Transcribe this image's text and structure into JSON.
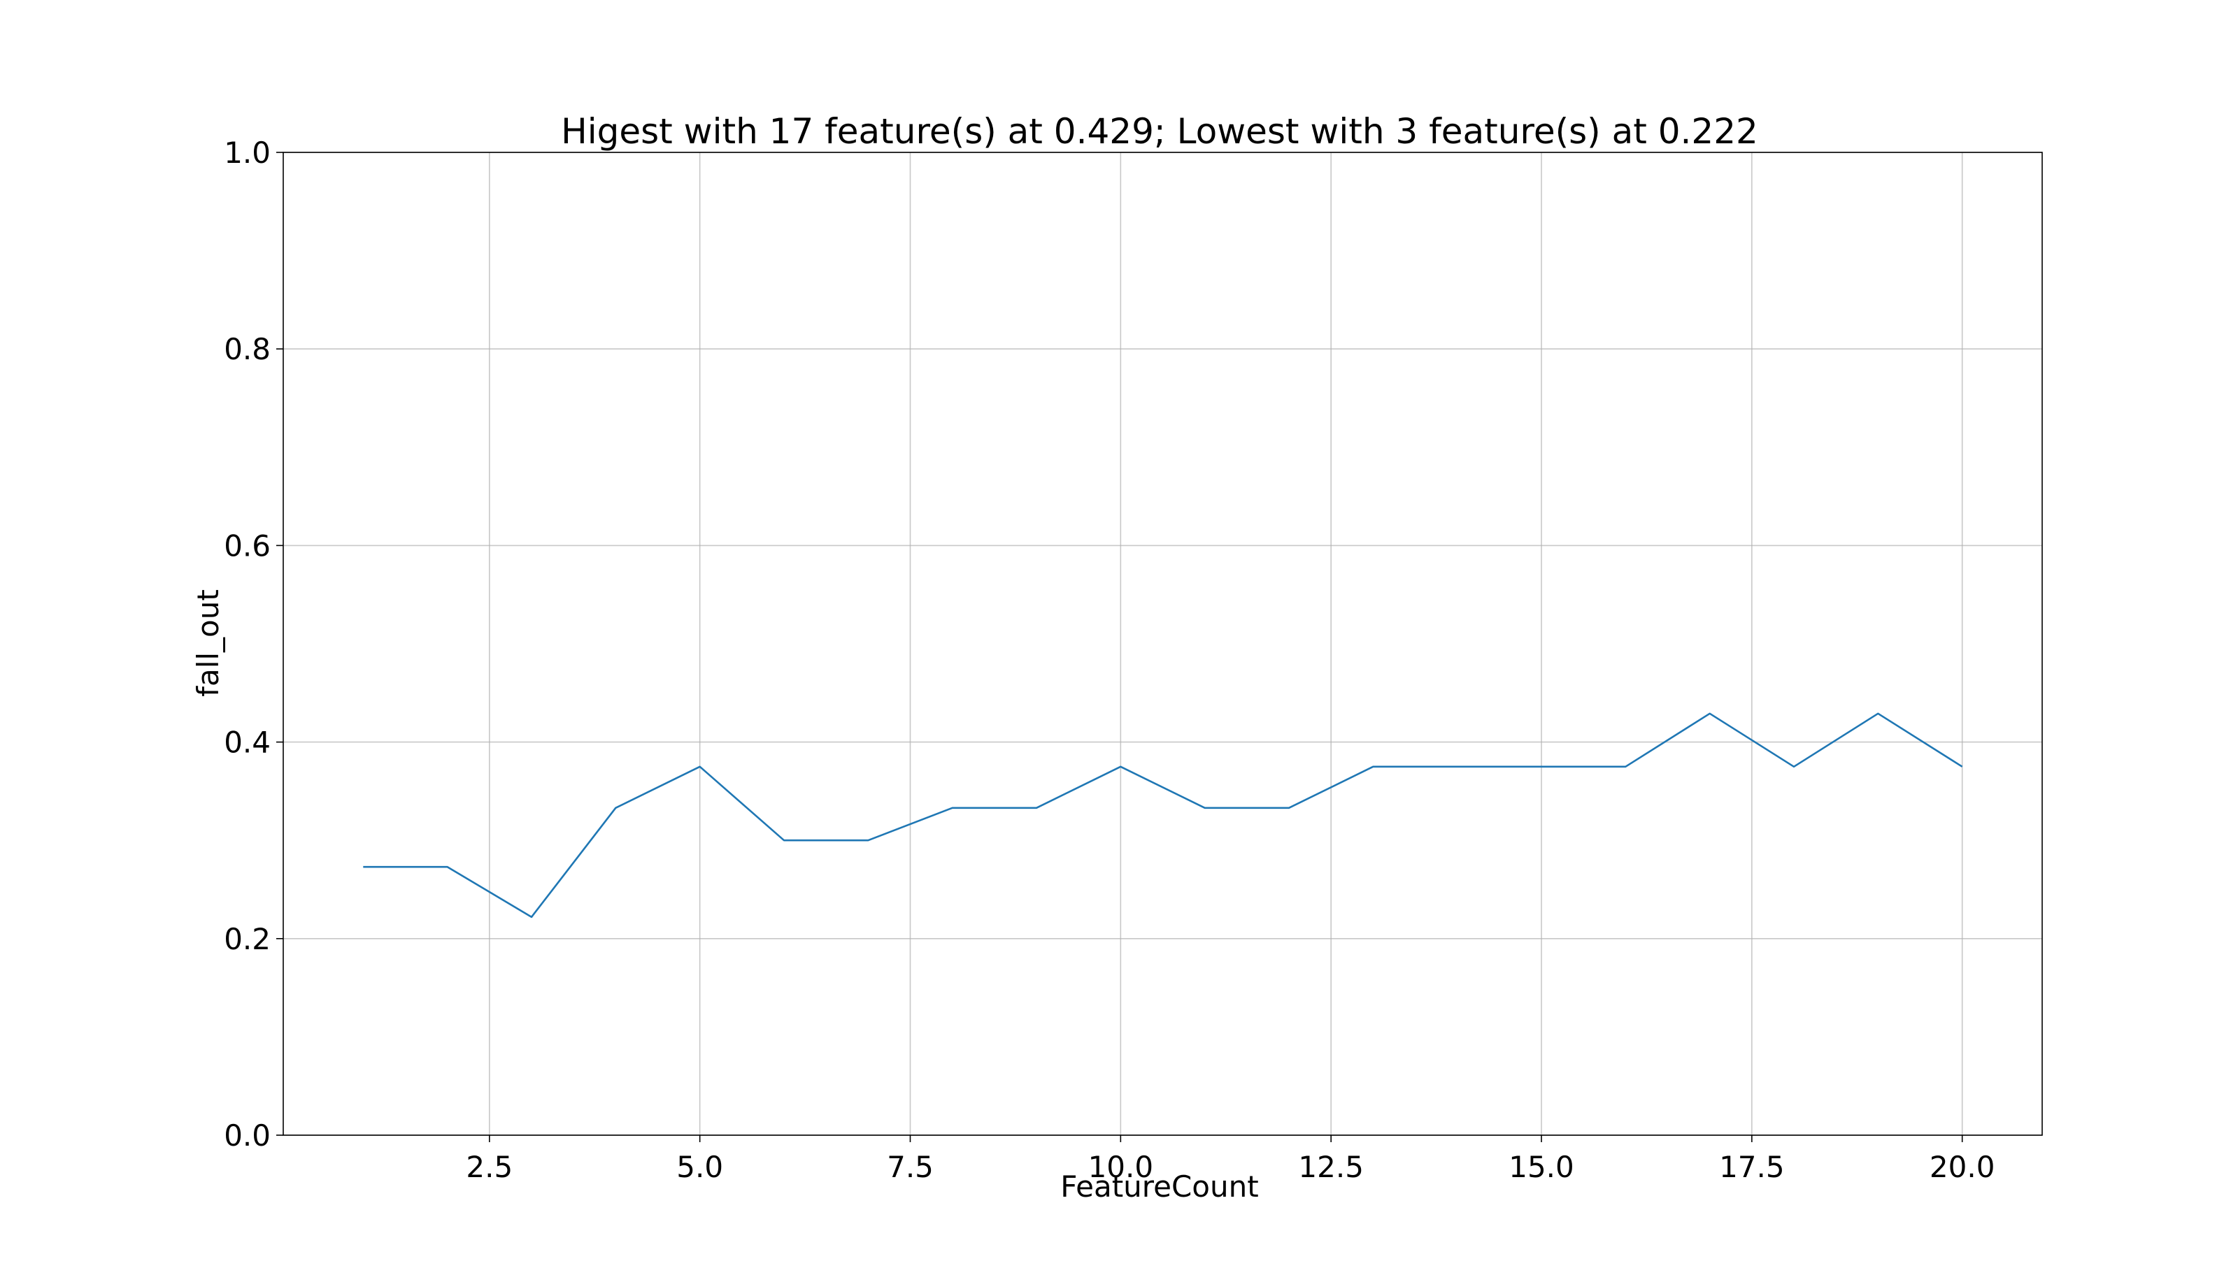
{
  "chart_data": {
    "type": "line",
    "title": "Higest with 17 feature(s) at 0.429; Lowest with 3 feature(s) at 0.222",
    "xlabel": "FeatureCount",
    "ylabel": "fall_out",
    "xlim": [
      0.05,
      20.95
    ],
    "ylim": [
      0.0,
      1.0
    ],
    "xticks": [
      2.5,
      5.0,
      7.5,
      10.0,
      12.5,
      15.0,
      17.5,
      20.0
    ],
    "xtick_labels": [
      "2.5",
      "5.0",
      "7.5",
      "10.0",
      "12.5",
      "15.0",
      "17.5",
      "20.0"
    ],
    "yticks": [
      0.0,
      0.2,
      0.4,
      0.6,
      0.8,
      1.0
    ],
    "ytick_labels": [
      "0.0",
      "0.2",
      "0.4",
      "0.6",
      "0.8",
      "1.0"
    ],
    "grid": true,
    "line_color": "#1f77b4",
    "grid_color": "#b0b0b0",
    "series": [
      {
        "x": [
          1,
          2,
          3,
          4,
          5,
          6,
          7,
          8,
          9,
          10,
          11,
          12,
          13,
          14,
          15,
          16,
          17,
          18,
          19,
          20
        ],
        "y": [
          0.273,
          0.273,
          0.222,
          0.333,
          0.375,
          0.3,
          0.3,
          0.333,
          0.333,
          0.375,
          0.333,
          0.333,
          0.375,
          0.375,
          0.375,
          0.375,
          0.429,
          0.375,
          0.429,
          0.375
        ]
      }
    ]
  }
}
